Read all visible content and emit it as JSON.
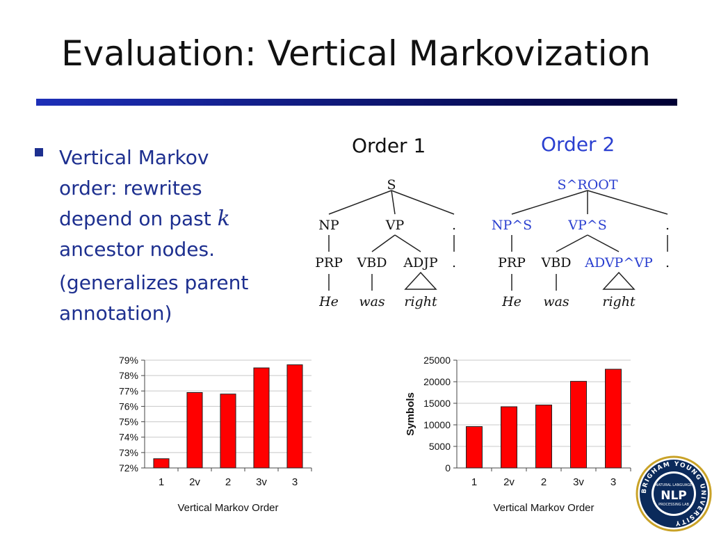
{
  "slide": {
    "title": "Evaluation: Vertical Markovization"
  },
  "bullet": {
    "line1": "Vertical Markov",
    "line2": "order: rewrites",
    "line3_pre": "depend on past ",
    "line3_var": "k",
    "line4": "ancestor nodes.",
    "line5": "(generalizes parent",
    "line6": "annotation)"
  },
  "trees": {
    "order1": {
      "label": "Order 1",
      "root": "S",
      "np": "NP",
      "vp": "VP",
      "dot": ".",
      "prp": "PRP",
      "vbd": "VBD",
      "adjp": "ADJP",
      "dot2": ".",
      "he": "He",
      "was": "was",
      "right": "right"
    },
    "order2": {
      "label": "Order 2",
      "root": "S^ROOT",
      "np": "NP^S",
      "vp": "VP^S",
      "dot": ".",
      "prp": "PRP",
      "vbd": "VBD",
      "advp": "ADVP^VP",
      "dot2": ".",
      "he": "He",
      "was": "was",
      "right": "right"
    }
  },
  "colors": {
    "blue_text": "#1d2f8f",
    "annotation_blue": "#2a3fd0",
    "bar_red": "#ff0000",
    "rule_dark": "#000033",
    "rule_blue": "#1d2fb8"
  },
  "chart_data": [
    {
      "type": "bar",
      "categories": [
        "1",
        "2v",
        "2",
        "3v",
        "3"
      ],
      "values": [
        72.6,
        76.9,
        76.8,
        78.5,
        78.7
      ],
      "ylim": [
        72,
        79
      ],
      "yticks": [
        "72%",
        "73%",
        "74%",
        "75%",
        "76%",
        "77%",
        "78%",
        "79%"
      ],
      "xlabel": "Vertical Markov Order",
      "ylabel": "",
      "grid": true
    },
    {
      "type": "bar",
      "categories": [
        "1",
        "2v",
        "2",
        "3v",
        "3"
      ],
      "values": [
        9600,
        14200,
        14600,
        20100,
        22900
      ],
      "ylim": [
        0,
        25000
      ],
      "yticks": [
        "0",
        "5000",
        "10000",
        "15000",
        "20000",
        "25000"
      ],
      "xlabel": "Vertical Markov Order",
      "ylabel": "Symbols",
      "grid": true
    }
  ],
  "logo": {
    "ring_text": "BRIGHAM YOUNG UNIVERSITY",
    "top_text": "NATURAL LANGUAGE",
    "main": "NLP",
    "bottom_text": "PROCESSING LAB"
  }
}
